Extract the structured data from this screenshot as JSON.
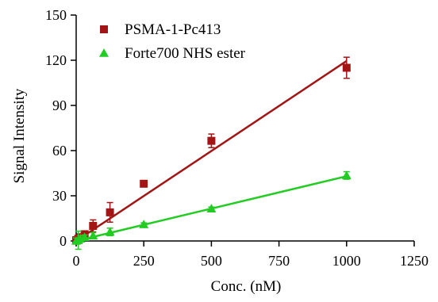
{
  "chart_data": {
    "type": "scatter",
    "xlabel": "Conc. (nM)",
    "ylabel": "Signal Intensity",
    "xlim": [
      0,
      1250
    ],
    "ylim": [
      0,
      150
    ],
    "xticks": [
      0,
      250,
      500,
      750,
      1000,
      1250
    ],
    "yticks": [
      0,
      30,
      60,
      90,
      120,
      150
    ],
    "legend_position": "top-left",
    "grid": false,
    "series": [
      {
        "name": "PSMA-1-Pc413",
        "marker": "square",
        "color": "#a31515",
        "points": [
          {
            "x": 0,
            "y": 0.5,
            "err": 1.5
          },
          {
            "x": 7.8,
            "y": 1.5,
            "err": 2
          },
          {
            "x": 15.6,
            "y": 2.5,
            "err": 2
          },
          {
            "x": 31.25,
            "y": 4.5,
            "err": 1.5
          },
          {
            "x": 62.5,
            "y": 10,
            "err": 4
          },
          {
            "x": 125,
            "y": 19,
            "err": 6.5
          },
          {
            "x": 250,
            "y": 38,
            "err": 1.5
          },
          {
            "x": 500,
            "y": 66.5,
            "err": 4.5
          },
          {
            "x": 1000,
            "y": 115,
            "err": 7
          }
        ],
        "fit": {
          "x": [
            0,
            1000
          ],
          "y": [
            0,
            119.5
          ]
        }
      },
      {
        "name": "Forte700 NHS ester",
        "marker": "triangle",
        "color": "#22cc22",
        "points": [
          {
            "x": 0,
            "y": 0,
            "err": 2
          },
          {
            "x": 7.8,
            "y": 0.5,
            "err": 6
          },
          {
            "x": 15.6,
            "y": 1.5,
            "err": 2
          },
          {
            "x": 31.25,
            "y": 2.5,
            "err": 1.5
          },
          {
            "x": 62.5,
            "y": 3.5,
            "err": 2
          },
          {
            "x": 125,
            "y": 6,
            "err": 2.5
          },
          {
            "x": 250,
            "y": 11,
            "err": 1
          },
          {
            "x": 500,
            "y": 21.5,
            "err": 1
          },
          {
            "x": 1000,
            "y": 43.5,
            "err": 2.5
          }
        ],
        "fit": {
          "x": [
            0,
            1000
          ],
          "y": [
            0,
            43
          ]
        }
      }
    ]
  }
}
